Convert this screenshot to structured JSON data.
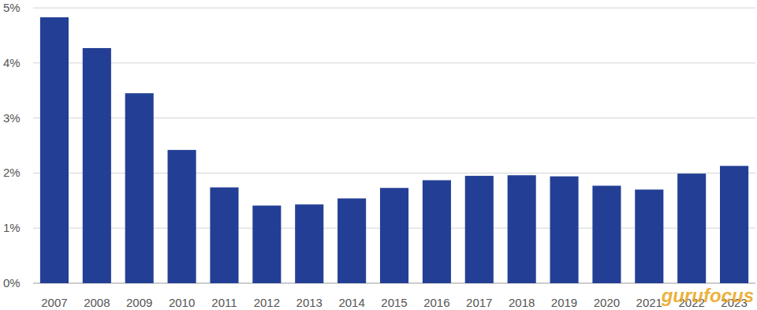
{
  "chart_data": {
    "type": "bar",
    "categories": [
      "2007",
      "2008",
      "2009",
      "2010",
      "2011",
      "2012",
      "2013",
      "2014",
      "2015",
      "2016",
      "2017",
      "2018",
      "2019",
      "2020",
      "2021",
      "2022",
      "2023"
    ],
    "values": [
      4.83,
      4.27,
      3.45,
      2.42,
      1.74,
      1.41,
      1.43,
      1.54,
      1.73,
      1.87,
      1.95,
      1.96,
      1.94,
      1.77,
      1.7,
      1.99,
      2.13
    ],
    "color": "#233f95",
    "ylim": [
      0,
      5
    ],
    "yticks": [
      {
        "value": 0,
        "label": "0%"
      },
      {
        "value": 1,
        "label": "1%"
      },
      {
        "value": 2,
        "label": "2%"
      },
      {
        "value": 3,
        "label": "3%"
      },
      {
        "value": 4,
        "label": "4%"
      },
      {
        "value": 5,
        "label": "5%"
      }
    ],
    "grid": true,
    "annotations": [
      "gurufocus"
    ]
  }
}
